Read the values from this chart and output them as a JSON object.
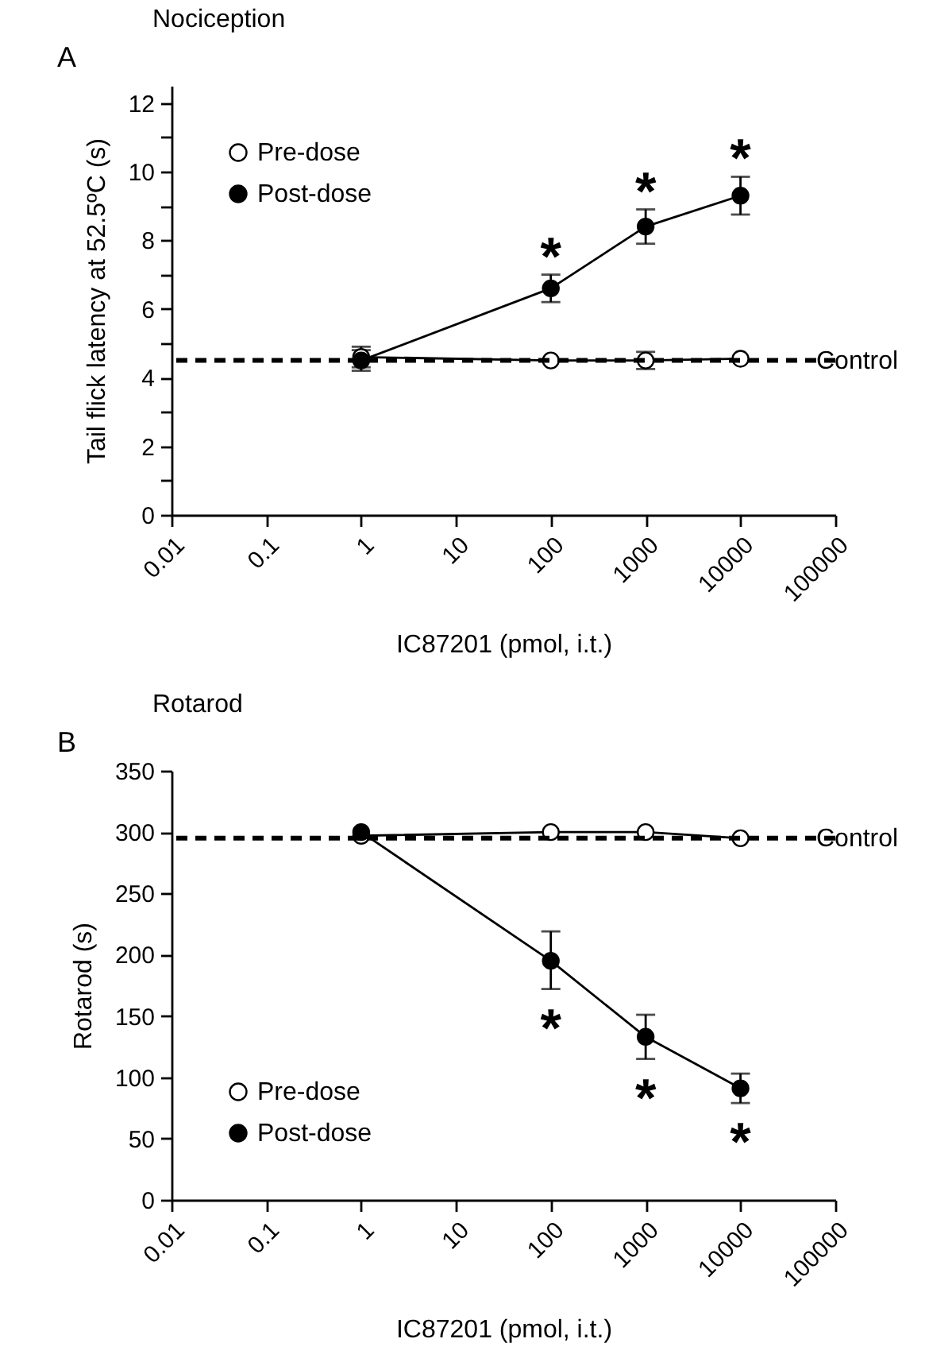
{
  "chart_data": [
    {
      "type": "line",
      "title": "Nociception",
      "xlabel": "IC87201 (pmol, i.t.)",
      "ylabel": "Tail flick latency at 52.5ºC (s)",
      "log": "x",
      "x": [
        1,
        100,
        1000,
        10000
      ],
      "xlim": [
        0.01,
        100000
      ],
      "xticks": [
        0.01,
        0.1,
        1,
        10,
        100,
        1000,
        10000,
        100000
      ],
      "ylim": [
        0,
        12.5
      ],
      "yticks": [
        0,
        {
          "value": 1,
          "label": null
        },
        2,
        {
          "value": 3,
          "label": null
        },
        4,
        {
          "value": 5,
          "label": null
        },
        6,
        {
          "value": 7,
          "label": null
        },
        8,
        {
          "value": 9,
          "label": null
        },
        10,
        {
          "value": 11,
          "label": null
        },
        12
      ],
      "marker": "circle",
      "legend": "top left",
      "series": [
        {
          "name": "Pre-dose",
          "color": "#000000",
          "values": [
            4.6,
            4.5,
            4.5,
            4.55
          ],
          "errors": [
            0.3,
            null,
            0.25,
            null
          ]
        },
        {
          "name": "Post-dose",
          "color": "#000000",
          "values": [
            4.5,
            6.6,
            8.4,
            9.3
          ],
          "errors": [
            0.3,
            0.4,
            0.5,
            0.55
          ]
        }
      ],
      "ref_lines": [
        {
          "axis": "y",
          "value": 4.5,
          "label": "Control",
          "line_style": "dashed",
          "color": "#000000"
        }
      ],
      "annotations": [
        "A",
        {
          "text": "*",
          "x": 100,
          "y": 7.0
        },
        {
          "text": "*",
          "x": 1000,
          "y": 8.9
        },
        {
          "text": "*",
          "x": 10000,
          "y": 9.85
        }
      ]
    },
    {
      "type": "line",
      "title": "Rotarod",
      "xlabel": "IC87201 (pmol, i.t.)",
      "ylabel": "Rotarod (s)",
      "log": "x",
      "x": [
        1,
        100,
        1000,
        10000
      ],
      "xlim": [
        0.01,
        100000
      ],
      "xticks": [
        0.01,
        0.1,
        1,
        10,
        100,
        1000,
        10000,
        100000
      ],
      "ylim": [
        0,
        350
      ],
      "yticks": [
        0,
        50,
        100,
        150,
        200,
        250,
        300,
        350
      ],
      "marker": "circle",
      "legend": "bottom left",
      "series": [
        {
          "name": "Pre-dose",
          "color": "#000000",
          "values": [
            297,
            300,
            300,
            295
          ]
        },
        {
          "name": "Post-dose",
          "color": "#000000",
          "values": [
            300,
            195,
            133,
            91
          ],
          "errors": [
            null,
            [
              172,
              219
            ],
            [
              115,
              151
            ],
            [
              79,
              103
            ]
          ]
        }
      ],
      "ref_lines": [
        {
          "axis": "y",
          "value": 295,
          "label": "Control",
          "line_style": "dashed",
          "color": "#000000"
        }
      ],
      "annotations": [
        "B",
        {
          "text": "*",
          "x": 100,
          "y": 172
        },
        {
          "text": "*",
          "x": 1000,
          "y": 115
        },
        {
          "text": "*",
          "x": 10000,
          "y": 79
        }
      ]
    }
  ]
}
